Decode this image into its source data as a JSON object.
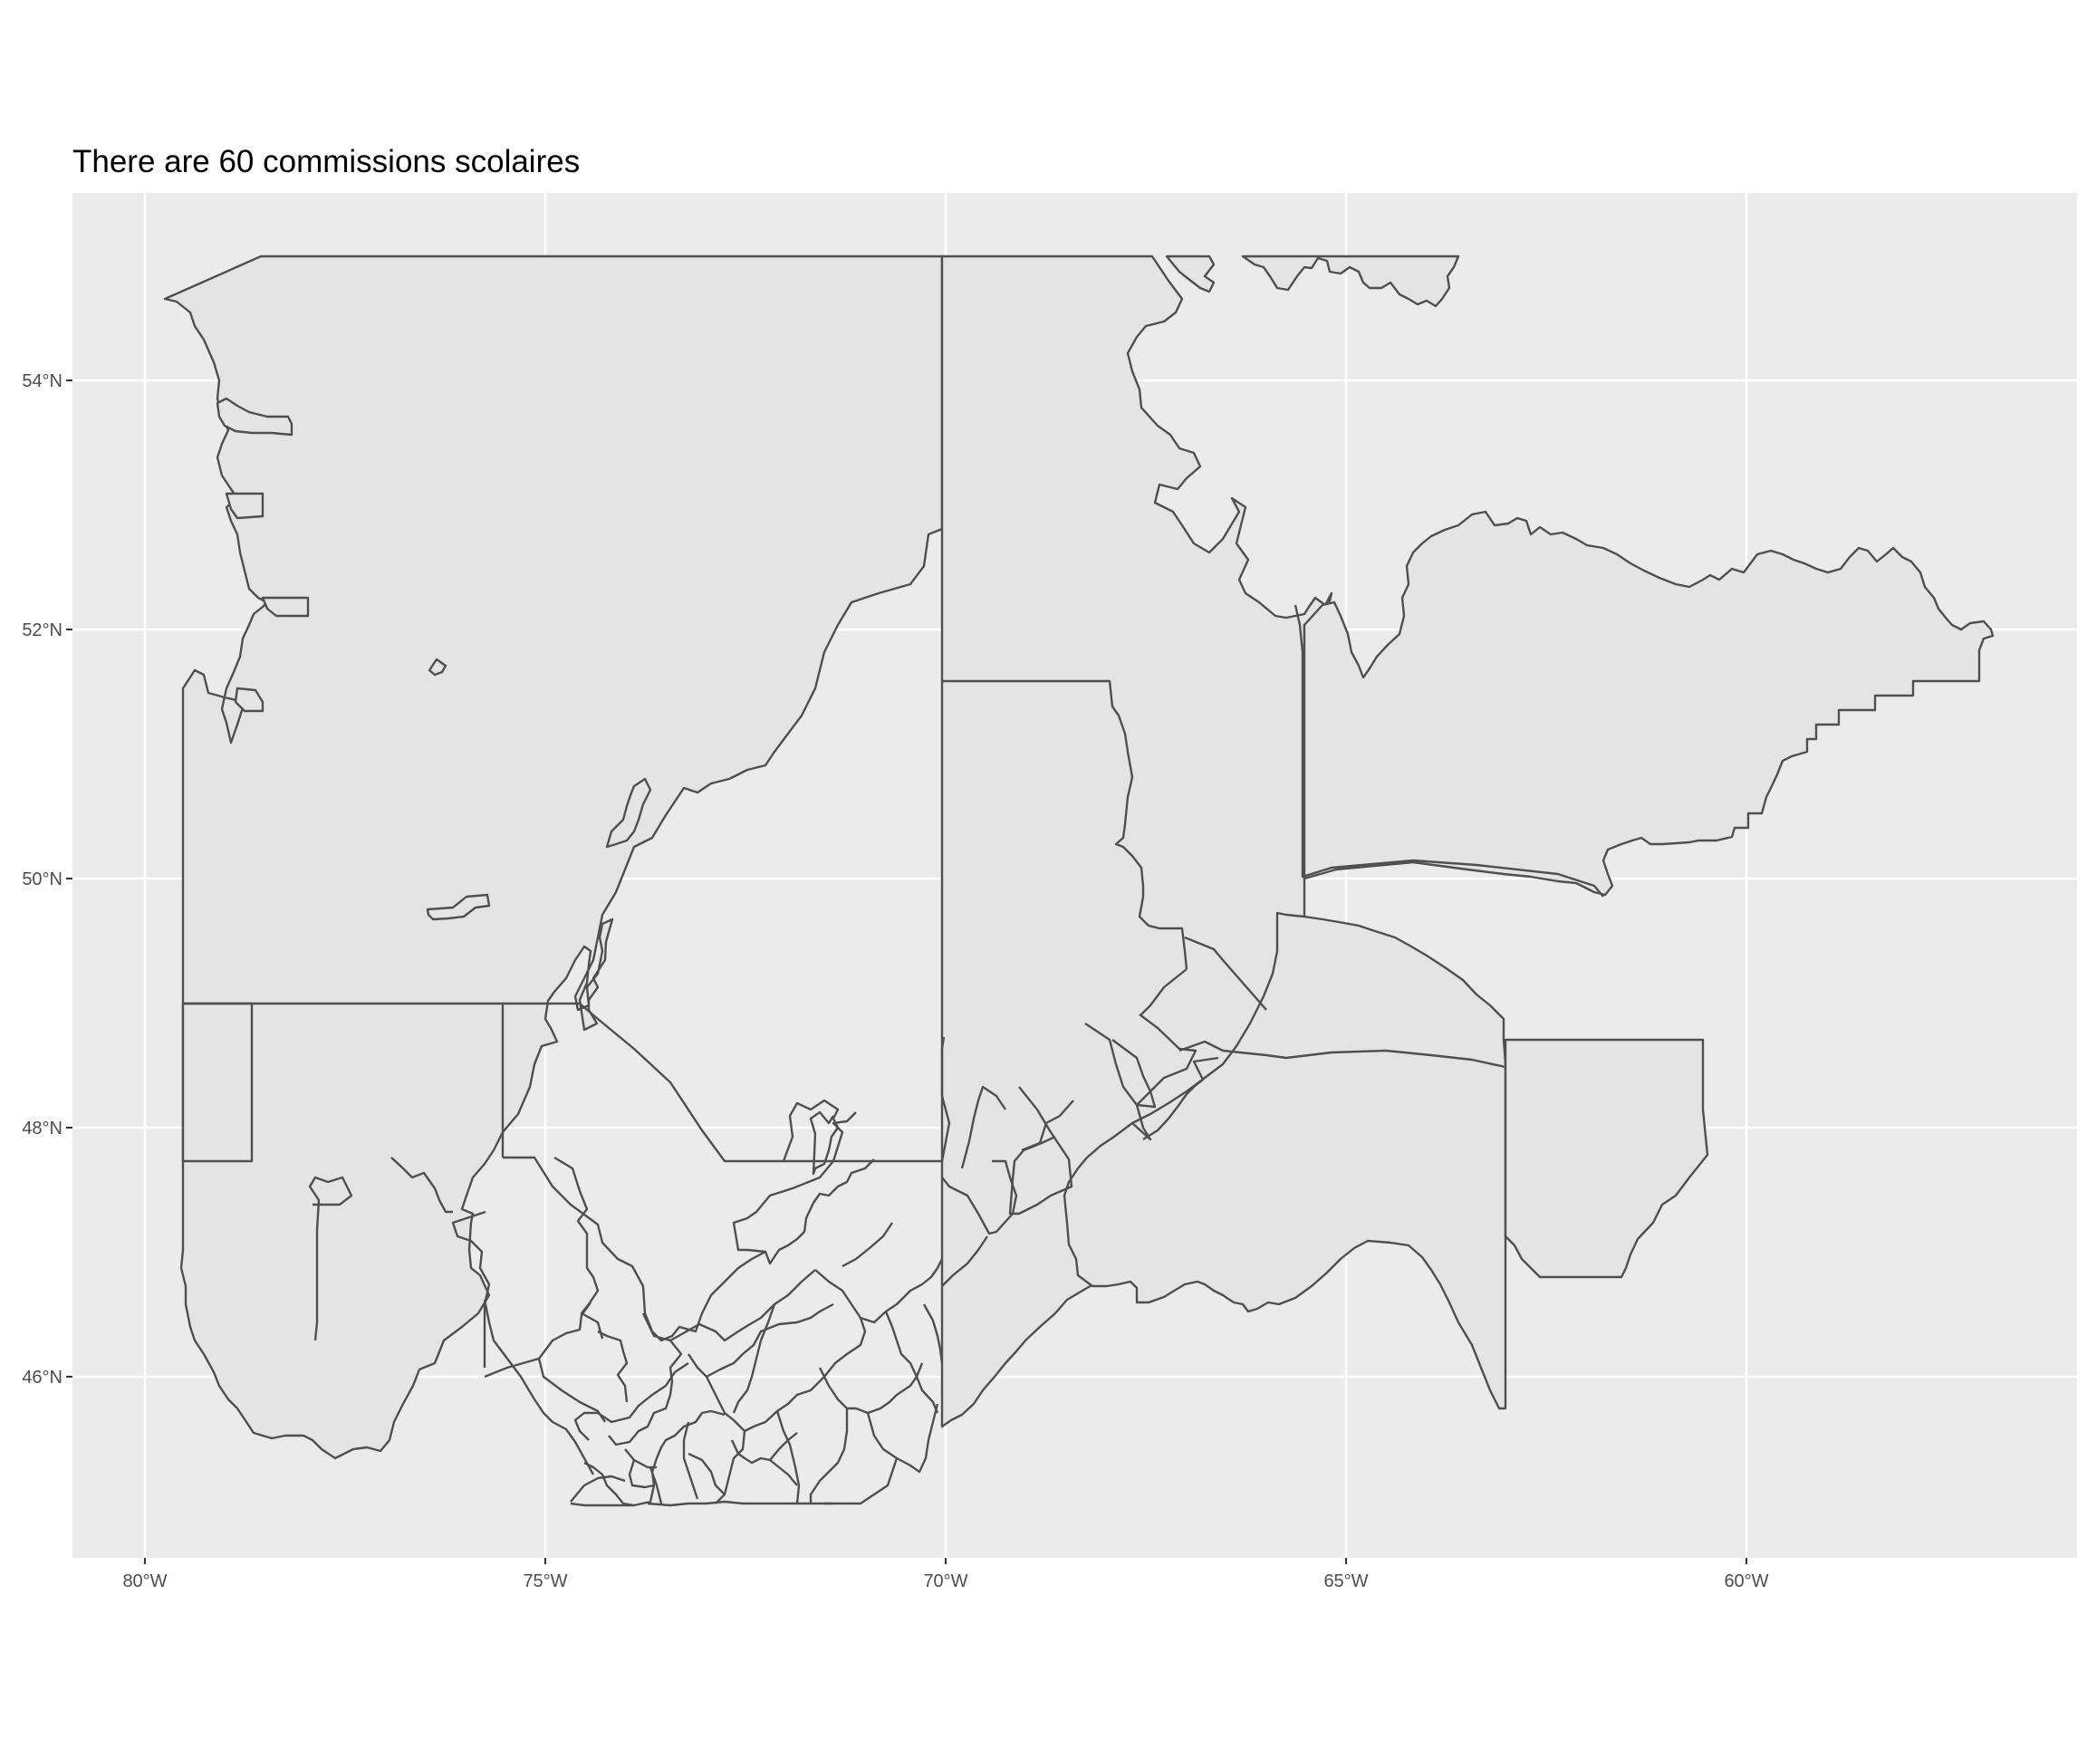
{
  "map": {
    "title": "There are 60 commissions scolaires",
    "x_ticks": [
      {
        "value": -80,
        "label": "80°W"
      },
      {
        "value": -75,
        "label": "75°W"
      },
      {
        "value": -70,
        "label": "70°W"
      },
      {
        "value": -65,
        "label": "65°W"
      },
      {
        "value": -60,
        "label": "60°W"
      }
    ],
    "y_ticks": [
      {
        "value": 54,
        "label": "54°N"
      },
      {
        "value": 52,
        "label": "52°N"
      },
      {
        "value": 50,
        "label": "50°N"
      },
      {
        "value": 48,
        "label": "48°N"
      },
      {
        "value": 46,
        "label": "46°N"
      }
    ],
    "panel_background": "#ebebeb",
    "region_fill": "#e4e4e4",
    "region_stroke": "#4f4f4f",
    "region_count": 60
  }
}
